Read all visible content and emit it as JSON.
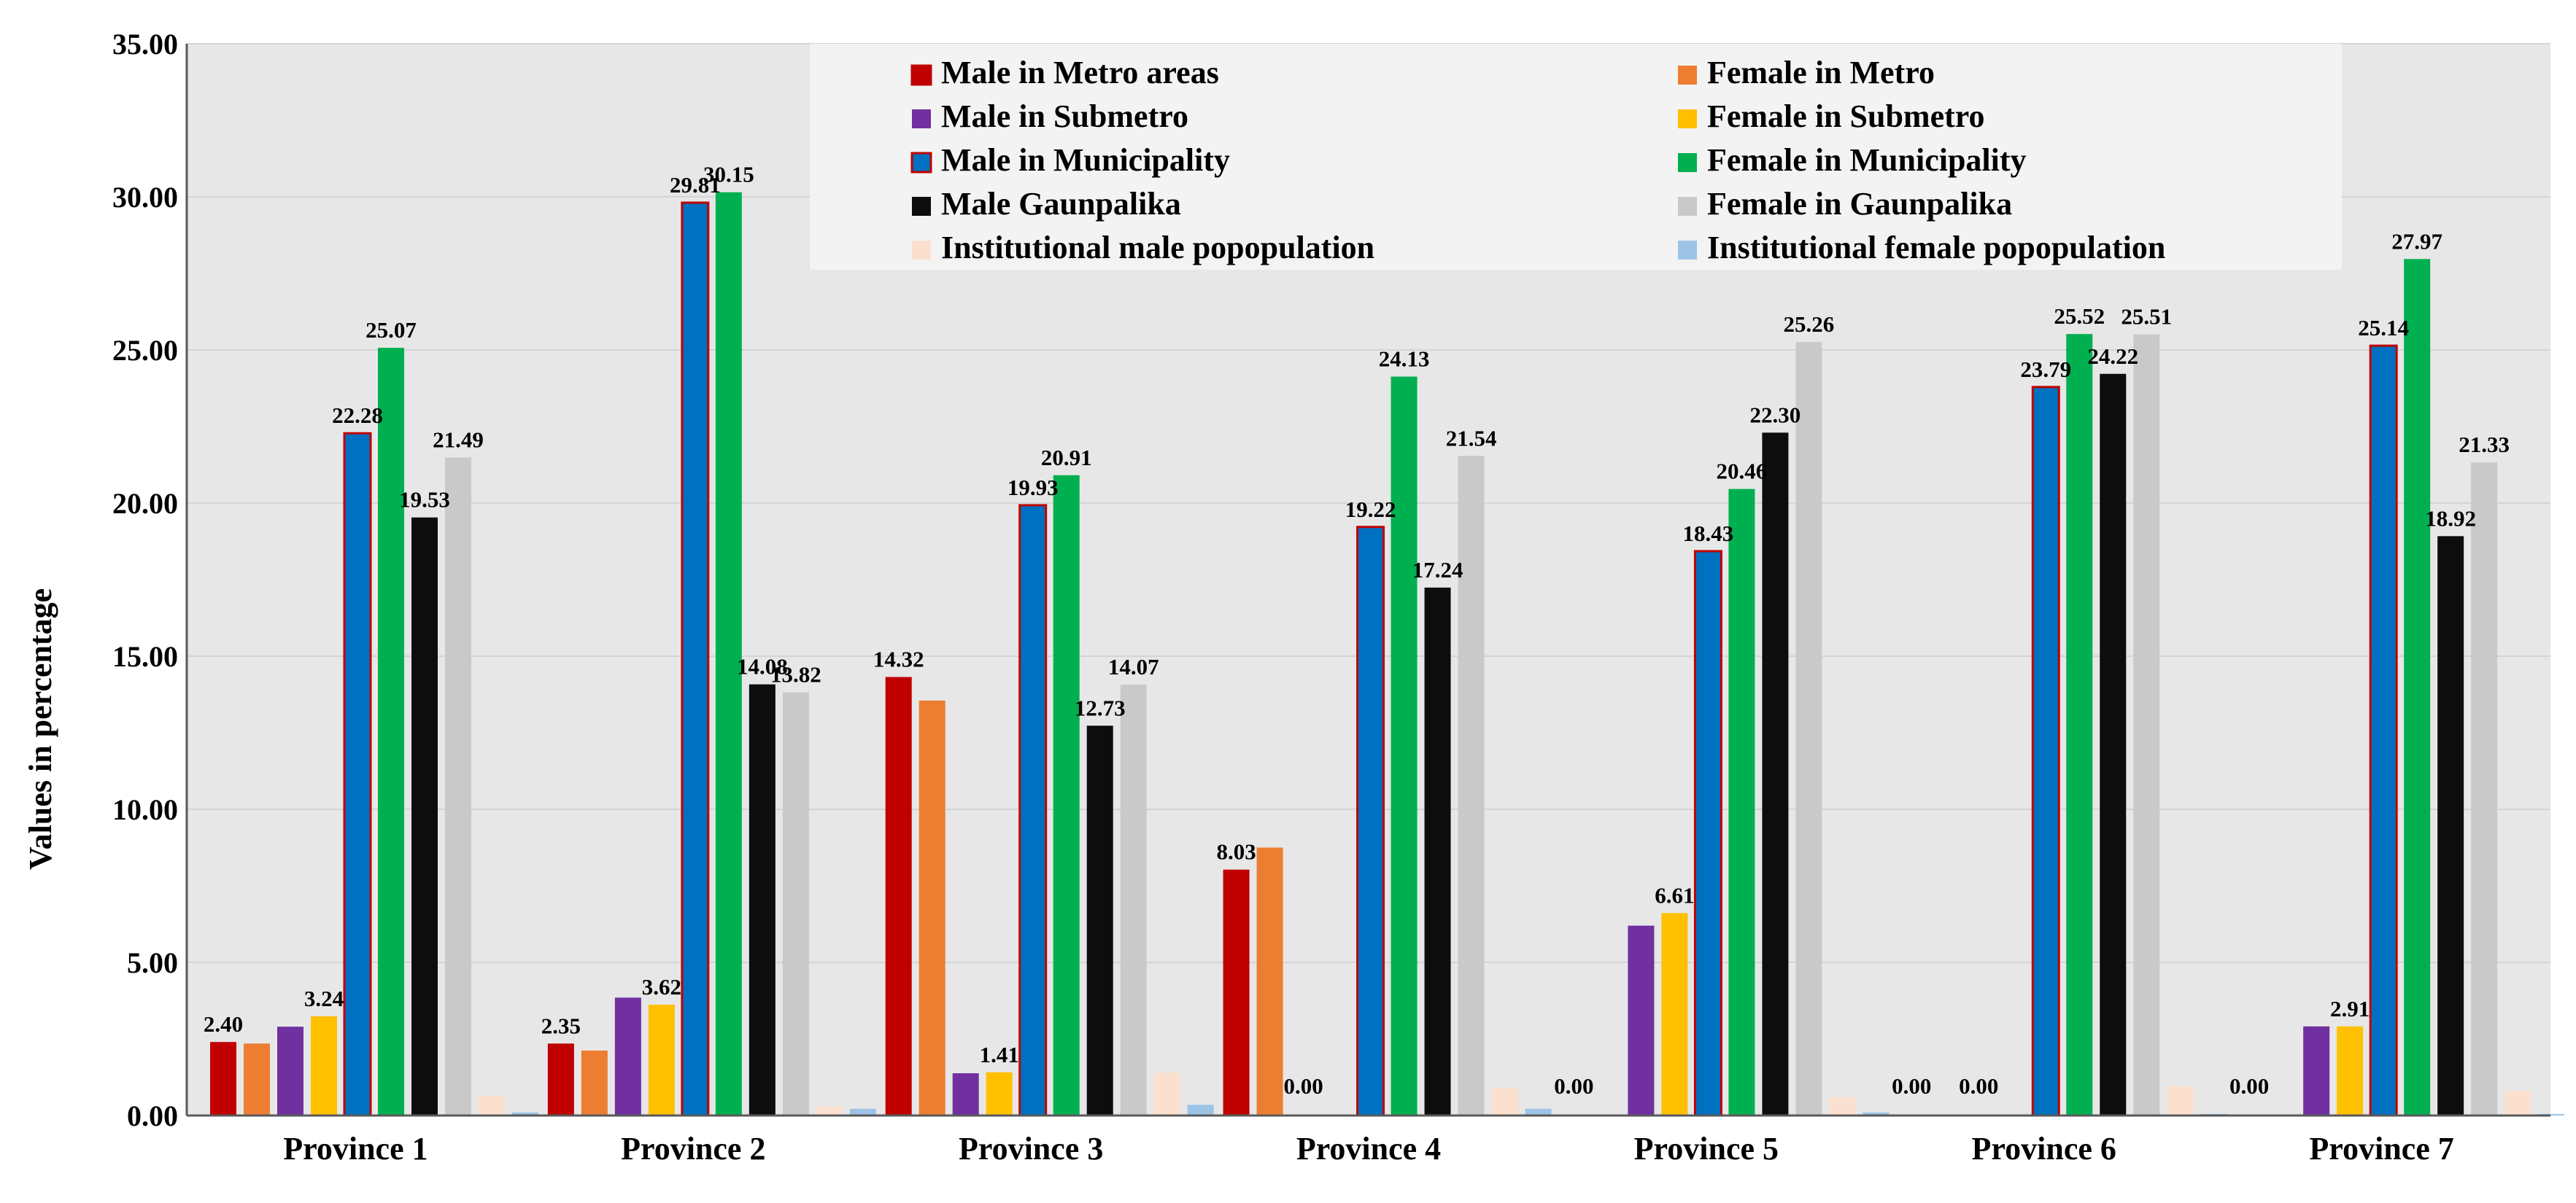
{
  "chart_data": {
    "type": "bar",
    "title": "",
    "xlabel": "",
    "ylabel": "Values in percentage",
    "ylim": [
      0,
      35
    ],
    "yticks": [
      "0.00",
      "5.00",
      "10.00",
      "15.00",
      "20.00",
      "25.00",
      "30.00",
      "35.00"
    ],
    "grid": true,
    "legend_position": "top-center",
    "categories": [
      "Province 1",
      "Province 2",
      "Province 3",
      "Province 4",
      "Province 5",
      "Province 6",
      "Province 7"
    ],
    "series": [
      {
        "name": "Male in Metro areas",
        "color": "#c00000",
        "values": [
          2.4,
          2.35,
          14.32,
          8.03,
          0.0,
          0.0,
          0.0
        ],
        "labels": [
          "2.40",
          "2.35",
          "14.32",
          "8.03",
          "0.00",
          "0.00",
          "0.00"
        ]
      },
      {
        "name": "Female in Metro",
        "color": "#ed7d31",
        "values": [
          2.35,
          2.12,
          13.55,
          8.75,
          0.0,
          0.0,
          0.0
        ],
        "labels": [
          "",
          "",
          "",
          "",
          "",
          "",
          ""
        ]
      },
      {
        "name": "Male in Submetro",
        "color": "#7030a0",
        "values": [
          2.9,
          3.85,
          1.38,
          0.0,
          6.2,
          0.0,
          2.91
        ],
        "labels": [
          "",
          "",
          "",
          "0.00",
          "",
          "0.00",
          ""
        ]
      },
      {
        "name": "Female in Submetro",
        "color": "#ffc000",
        "values": [
          3.24,
          3.62,
          1.41,
          0.0,
          6.61,
          0.0,
          2.91
        ],
        "labels": [
          "3.24",
          "3.62",
          "1.41",
          "",
          "6.61",
          "",
          "2.91"
        ]
      },
      {
        "name": "Male in Municipality",
        "color": "#0070c0",
        "values": [
          22.28,
          29.81,
          19.93,
          19.22,
          18.43,
          23.79,
          25.14
        ],
        "labels": [
          "22.28",
          "29.81",
          "19.93",
          "19.22",
          "18.43",
          "23.79",
          "25.14"
        ]
      },
      {
        "name": "Female in Municipality",
        "color": "#00b050",
        "values": [
          25.07,
          30.15,
          20.91,
          24.13,
          20.46,
          25.52,
          27.97
        ],
        "labels": [
          "25.07",
          "30.15",
          "20.91",
          "24.13",
          "20.46",
          "25.52",
          "27.97"
        ]
      },
      {
        "name": "Male Gaunpalika",
        "color": "#0d0d0d",
        "values": [
          19.53,
          14.08,
          12.73,
          17.24,
          22.3,
          24.22,
          18.92
        ],
        "labels": [
          "19.53",
          "14.08",
          "12.73",
          "17.24",
          "22.30",
          "24.22",
          "18.92"
        ]
      },
      {
        "name": "Female in Gaunpalika",
        "color": "#c9c9c9",
        "values": [
          21.49,
          13.82,
          14.07,
          21.54,
          25.26,
          25.51,
          21.33
        ],
        "labels": [
          "21.49",
          "13.82",
          "14.07",
          "21.54",
          "25.26",
          "25.51",
          "21.33"
        ]
      },
      {
        "name": "Institutional male popopulation",
        "color": "#fbe0d0",
        "values": [
          0.65,
          0.3,
          1.4,
          0.9,
          0.6,
          0.95,
          0.8
        ],
        "labels": [
          "",
          "",
          "",
          "",
          "",
          "",
          ""
        ]
      },
      {
        "name": "Institutional female popopulation",
        "color": "#9dc3e6",
        "values": [
          0.1,
          0.22,
          0.35,
          0.22,
          0.1,
          0.05,
          0.05
        ],
        "labels": [
          "",
          "",
          "",
          "",
          "",
          "",
          ""
        ]
      }
    ]
  }
}
